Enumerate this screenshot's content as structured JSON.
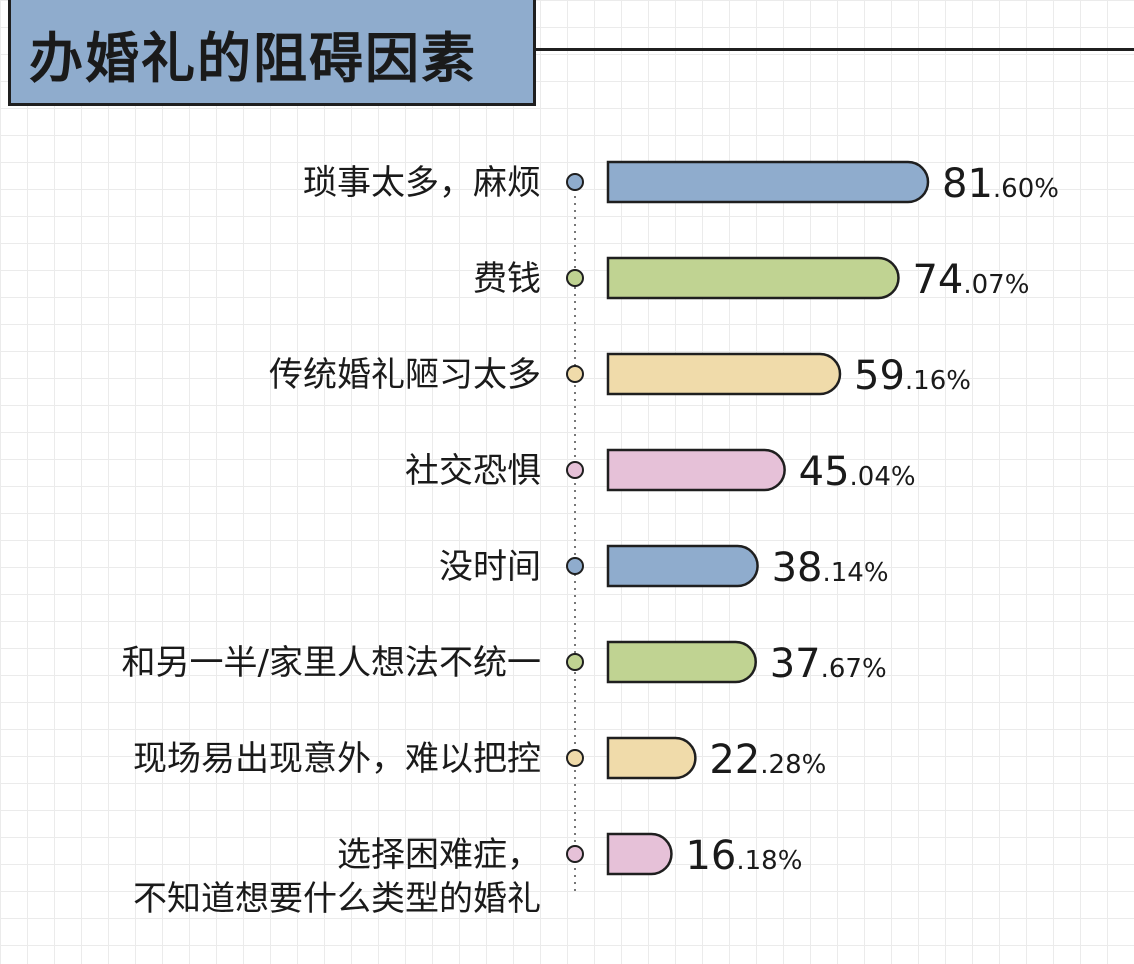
{
  "title": "办婚礼的阻碍因素",
  "chart_data": {
    "type": "bar",
    "orientation": "horizontal",
    "categories": [
      [
        "琐事太多，麻烦"
      ],
      [
        "费钱"
      ],
      [
        "传统婚礼陋习太多"
      ],
      [
        "社交恐惧"
      ],
      [
        "没时间"
      ],
      [
        "和另一半/家里人想法不统一"
      ],
      [
        "现场易出现意外，难以把控"
      ],
      [
        "选择困难症，",
        "不知道想要什么类型的婚礼"
      ]
    ],
    "values": [
      81.6,
      74.07,
      59.16,
      45.04,
      38.14,
      37.67,
      22.28,
      16.18
    ],
    "value_labels": [
      [
        "81",
        ".60%"
      ],
      [
        "74",
        ".07%"
      ],
      [
        "59",
        ".16%"
      ],
      [
        "45",
        ".04%"
      ],
      [
        "38",
        ".14%"
      ],
      [
        "37",
        ".67%"
      ],
      [
        "22",
        ".28%"
      ],
      [
        "16",
        ".18%"
      ]
    ],
    "colors": [
      "#8faccd",
      "#c0d392",
      "#f0dbaa",
      "#e6c1d8",
      "#8faccd",
      "#c0d392",
      "#f0dbaa",
      "#e6c1d8"
    ],
    "outline_color": "#1f1f1f",
    "xlim": [
      0,
      100
    ],
    "grid": true,
    "legend": "none"
  }
}
